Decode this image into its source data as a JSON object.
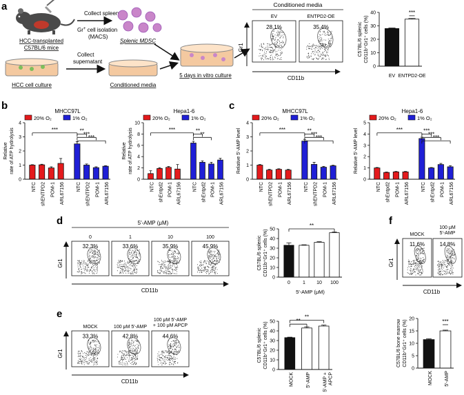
{
  "figure": {
    "panel_labels": [
      "a",
      "b",
      "c",
      "d",
      "e",
      "f"
    ],
    "colors": {
      "red": "#e41a1c",
      "blue": "#1f1fd6",
      "black": "#111111",
      "dish_fill": "#f4c9a0",
      "mdsc_fill": "#c986c9",
      "mouse_fill": "#4a4a4a",
      "mouse_belly": "#c0392b"
    }
  },
  "panel_a": {
    "mouse_label_1": "HCC-transplanted",
    "mouse_label_2": "C57BL/6 mice",
    "collect_spleen": "Collect spleen",
    "gr1_isolation_1": "Gr",
    "gr1_isolation_sup": "+",
    "gr1_isolation_2": " cell isolation",
    "macs": "(MACS)",
    "splenic_mdsc": "Splenic MDSC",
    "hcc_culture": "HCC cell culture",
    "collect_sup_1": "Collect",
    "collect_sup_2": "supernatant",
    "conditioned_media": "Conditioned media",
    "in_vitro": "5 days in vitro culture",
    "flow_title": "Conditioned media",
    "flow_panels": [
      {
        "label": "EV",
        "pct": "28.1%"
      },
      {
        "label": "ENTPD2-OE",
        "pct": "35.4%"
      }
    ],
    "flow_ylabel": "Gr1",
    "flow_xlabel": "CD11b"
  },
  "chart_data": [
    {
      "id": "a-bar",
      "type": "bar",
      "ylabel_lines": [
        "C57BL/6 splenic",
        "CD11b⁺Gr1⁺ cells (%)"
      ],
      "categories": [
        "EV",
        "ENTPD2-OE"
      ],
      "values": [
        28,
        35
      ],
      "errors": [
        0.4,
        0.5
      ],
      "fills": [
        "black",
        "white"
      ],
      "ylim": [
        0,
        40
      ],
      "yticks": [
        0,
        10,
        20,
        30,
        40
      ],
      "significance": "***"
    },
    {
      "id": "b-mhcc97l",
      "type": "bar",
      "title": "MHCC97L",
      "legend": [
        "20% O₂",
        "1% O₂"
      ],
      "ylabel_lines": [
        "Relative",
        "rate of ATP hydrolysis"
      ],
      "categories": [
        "NTC",
        "shENTPD2",
        "POM-1",
        "ARL67156",
        "NTC",
        "shENTPD2",
        "POM-1",
        "ARL67156"
      ],
      "values": [
        1.0,
        1.02,
        0.8,
        1.12,
        2.5,
        1.0,
        0.82,
        0.92
      ],
      "errors": [
        0.03,
        0.04,
        0.08,
        0.35,
        0.15,
        0.08,
        0.06,
        0.04
      ],
      "groups": [
        "20",
        "20",
        "20",
        "20",
        "1",
        "1",
        "1",
        "1"
      ],
      "ylim": [
        0,
        4
      ],
      "yticks": [
        0,
        1,
        2,
        3,
        4
      ],
      "significance": [
        "***",
        "**",
        "***",
        "***"
      ]
    },
    {
      "id": "b-hepa",
      "type": "bar",
      "title": "Hepa1-6",
      "legend": [
        "20% O₂",
        "1% O₂"
      ],
      "ylabel_lines": [
        "Relative",
        "rate of ATP hydrolysis"
      ],
      "categories": [
        "NTC",
        "shEntpd2",
        "POM-1",
        "ARL67156",
        "NTC",
        "shEntpd2",
        "POM-1",
        "ARL67156"
      ],
      "values": [
        1.0,
        1.9,
        2.1,
        1.8,
        6.4,
        3.0,
        2.7,
        3.4
      ],
      "errors": [
        0.5,
        0.15,
        0.15,
        0.8,
        0.3,
        0.25,
        0.3,
        0.3
      ],
      "groups": [
        "20",
        "20",
        "20",
        "20",
        "1",
        "1",
        "1",
        "1"
      ],
      "ylim": [
        0,
        10
      ],
      "yticks": [
        0,
        2,
        4,
        6,
        8,
        10
      ],
      "significance": [
        "***",
        "**",
        "**"
      ]
    },
    {
      "id": "c-mhcc97l",
      "type": "bar",
      "title": "MHCC97L",
      "legend": [
        "20% O₂",
        "1% O₂"
      ],
      "ylabel_lines": [
        "Relative 5′-AMP level"
      ],
      "categories": [
        "NTC",
        "shENTPD2",
        "POM-1",
        "ARL67156",
        "NTC",
        "shENTPD2",
        "POM-1",
        "ARL67156"
      ],
      "values": [
        1.0,
        0.65,
        0.7,
        0.65,
        2.7,
        1.05,
        0.85,
        0.95
      ],
      "errors": [
        0.04,
        0.05,
        0.04,
        0.05,
        0.12,
        0.15,
        0.06,
        0.04
      ],
      "groups": [
        "20",
        "20",
        "20",
        "20",
        "1",
        "1",
        "1",
        "1"
      ],
      "ylim": [
        0,
        4
      ],
      "yticks": [
        0,
        1,
        2,
        3,
        4
      ],
      "significance": [
        "***",
        "**",
        "***",
        "***"
      ]
    },
    {
      "id": "c-hepa",
      "type": "bar",
      "title": "Hepa1-6",
      "legend": [
        "20% O₂",
        "1% O₂"
      ],
      "ylabel_lines": [
        "Relative 5′-AMP level"
      ],
      "categories": [
        "NTC",
        "shEntpd2",
        "POM-1",
        "ARL67156",
        "NTC",
        "shEntpd2",
        "POM-1",
        "ARL67156"
      ],
      "values": [
        1.0,
        0.6,
        0.65,
        0.65,
        3.6,
        1.0,
        1.3,
        1.1
      ],
      "errors": [
        0.04,
        0.04,
        0.04,
        0.04,
        0.12,
        0.04,
        0.1,
        0.1
      ],
      "groups": [
        "20",
        "20",
        "20",
        "20",
        "1",
        "1",
        "1",
        "1"
      ],
      "ylim": [
        0,
        5
      ],
      "yticks": [
        0,
        1,
        2,
        3,
        4,
        5
      ],
      "significance": [
        "***",
        "***",
        "***",
        "***"
      ]
    },
    {
      "id": "d-bar",
      "type": "bar",
      "ylabel_lines": [
        "C57BL/6 splenic",
        "CD11b⁺Gr1⁺ cells (%)"
      ],
      "xlabel": "5′-AMP (μM)",
      "categories": [
        "0",
        "1",
        "10",
        "100"
      ],
      "values": [
        33,
        33,
        36,
        46
      ],
      "errors": [
        2.5,
        0.5,
        0.7,
        0.7
      ],
      "fills": [
        "black",
        "white",
        "white",
        "white"
      ],
      "ylim": [
        0,
        50
      ],
      "yticks": [
        0,
        10,
        20,
        30,
        40,
        50
      ],
      "significance": "**"
    },
    {
      "id": "e-bar",
      "type": "bar",
      "ylabel_lines": [
        "C57BL/6 splenic",
        "CD11b⁺Gr1⁺ cells (%)"
      ],
      "categories": [
        "MOCK",
        "5′-AMP",
        "5′-AMP +\nAPCP"
      ],
      "values": [
        33,
        43,
        45
      ],
      "errors": [
        0.5,
        1.2,
        1.0
      ],
      "fills": [
        "black",
        "white",
        "white"
      ],
      "ylim": [
        0,
        50
      ],
      "yticks": [
        0,
        10,
        20,
        30,
        40,
        50
      ],
      "significance": [
        "**",
        "**"
      ]
    },
    {
      "id": "f-bar",
      "type": "bar",
      "ylabel_lines": [
        "C57BL/6 bone marrow",
        "CD11b⁺Gr1⁺ cells (%)"
      ],
      "categories": [
        "MOCK",
        "5′-AMP"
      ],
      "values": [
        11.5,
        15
      ],
      "errors": [
        0.3,
        0.3
      ],
      "fills": [
        "black",
        "white"
      ],
      "ylim": [
        0,
        20
      ],
      "yticks": [
        0,
        5,
        10,
        15,
        20
      ],
      "significance": "***"
    }
  ],
  "panel_d": {
    "header": "5′-AMP (μM)",
    "flow_panels": [
      {
        "label": "0",
        "pct": "32.3%"
      },
      {
        "label": "1",
        "pct": "33.6%"
      },
      {
        "label": "10",
        "pct": "35.9%"
      },
      {
        "label": "100",
        "pct": "45.9%"
      }
    ],
    "flow_ylabel": "Gr1",
    "flow_xlabel": "CD11b"
  },
  "panel_e": {
    "flow_panels": [
      {
        "label": "MOCK",
        "pct": "33.3%"
      },
      {
        "label": "100 μM 5′-AMP",
        "pct": "42.8%"
      },
      {
        "label": "100 μM 5′-AMP\n+ 100 μM APCP",
        "pct": "44.6%"
      }
    ],
    "flow_ylabel": "Gr1",
    "flow_xlabel": "CD11b"
  },
  "panel_f": {
    "flow_panels": [
      {
        "label": "MOCK",
        "pct": "11.6%"
      },
      {
        "label": "100 μM\n5′-AMP",
        "pct": "14.8%"
      }
    ],
    "flow_ylabel": "Gr1",
    "flow_xlabel": "CD11b"
  }
}
